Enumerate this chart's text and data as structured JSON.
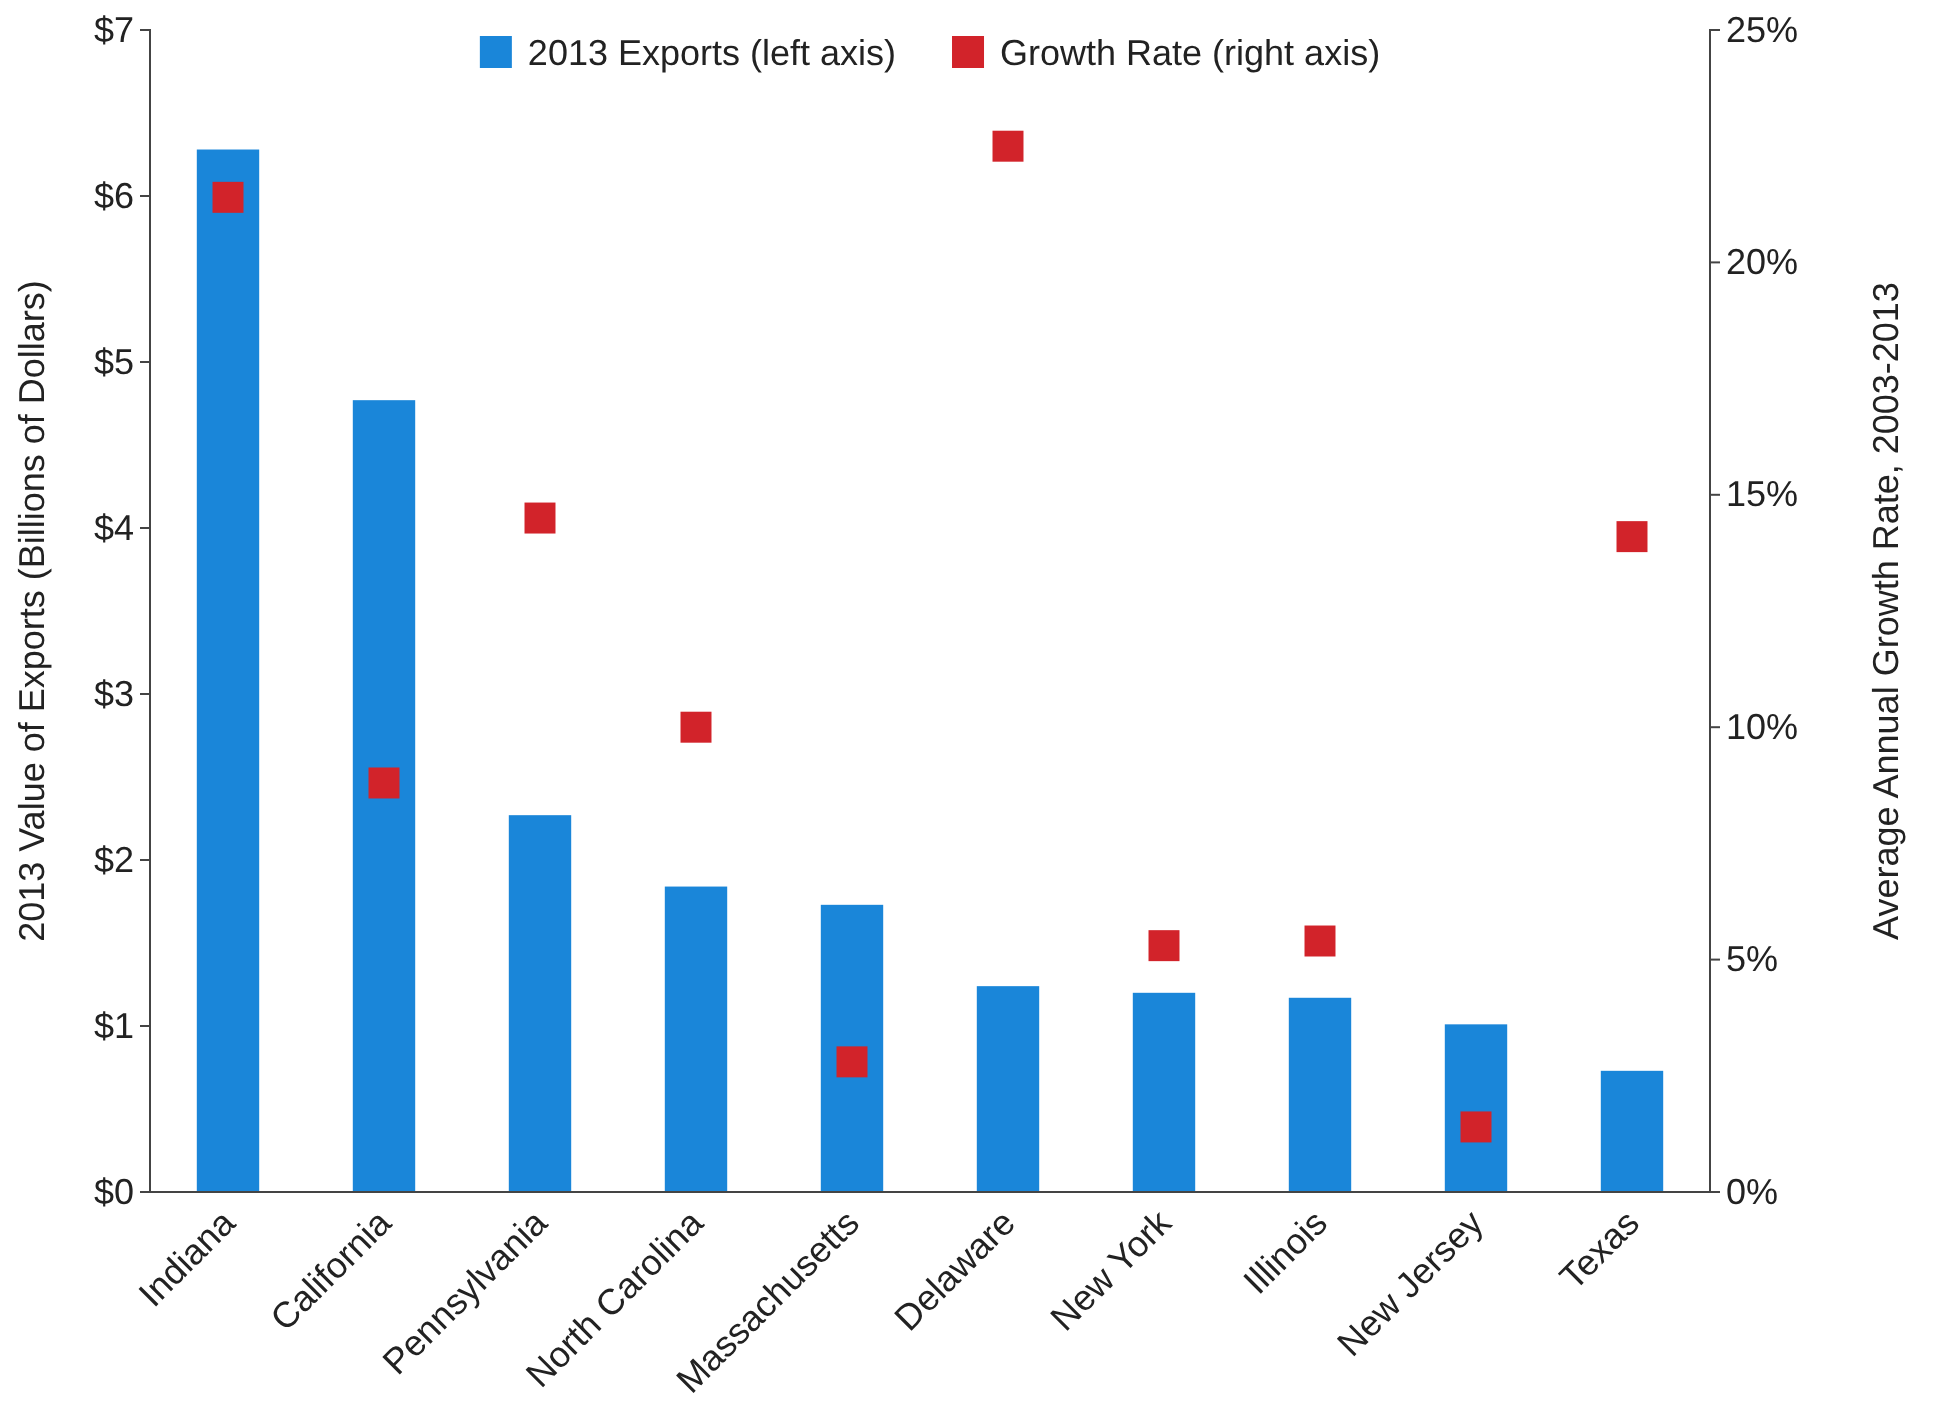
{
  "chart_data": {
    "type": "bar",
    "ylabel": "2013 Value of Exports (Billions of Dollars)",
    "y2label": "Average Annual Growth Rate, 2003-2013",
    "categories": [
      "Indiana",
      "California",
      "Pennsylvania",
      "North Carolina",
      "Massachusetts",
      "Delaware",
      "New York",
      "Illinois",
      "New Jersey",
      "Texas"
    ],
    "series": [
      {
        "name": "2013 Exports (left axis)",
        "color": "#1a86d9",
        "values": [
          6.28,
          4.77,
          2.27,
          1.84,
          1.73,
          1.24,
          1.2,
          1.17,
          1.01,
          0.73
        ]
      },
      {
        "name": "Growth Rate (right axis)",
        "type": "scatter",
        "axis": "y2",
        "color": "#d2232a",
        "values": [
          21.4,
          8.8,
          14.5,
          10.0,
          2.8,
          22.5,
          5.3,
          5.4,
          1.4,
          14.1
        ]
      }
    ],
    "ylim": [
      0,
      7
    ],
    "yticks": [
      {
        "value": 0,
        "label": "$0"
      },
      {
        "value": 1,
        "label": "$1"
      },
      {
        "value": 2,
        "label": "$2"
      },
      {
        "value": 3,
        "label": "$3"
      },
      {
        "value": 4,
        "label": "$4"
      },
      {
        "value": 5,
        "label": "$5"
      },
      {
        "value": 6,
        "label": "$6"
      },
      {
        "value": 7,
        "label": "$7"
      }
    ],
    "y2lim": [
      0,
      25
    ],
    "y2ticks": [
      {
        "value": 0,
        "label": "0%"
      },
      {
        "value": 5,
        "label": "5%"
      },
      {
        "value": 10,
        "label": "10%"
      },
      {
        "value": 15,
        "label": "15%"
      },
      {
        "value": 20,
        "label": "20%"
      },
      {
        "value": 25,
        "label": "25%"
      }
    ],
    "legend": "top",
    "marker": "square",
    "grid": false
  }
}
